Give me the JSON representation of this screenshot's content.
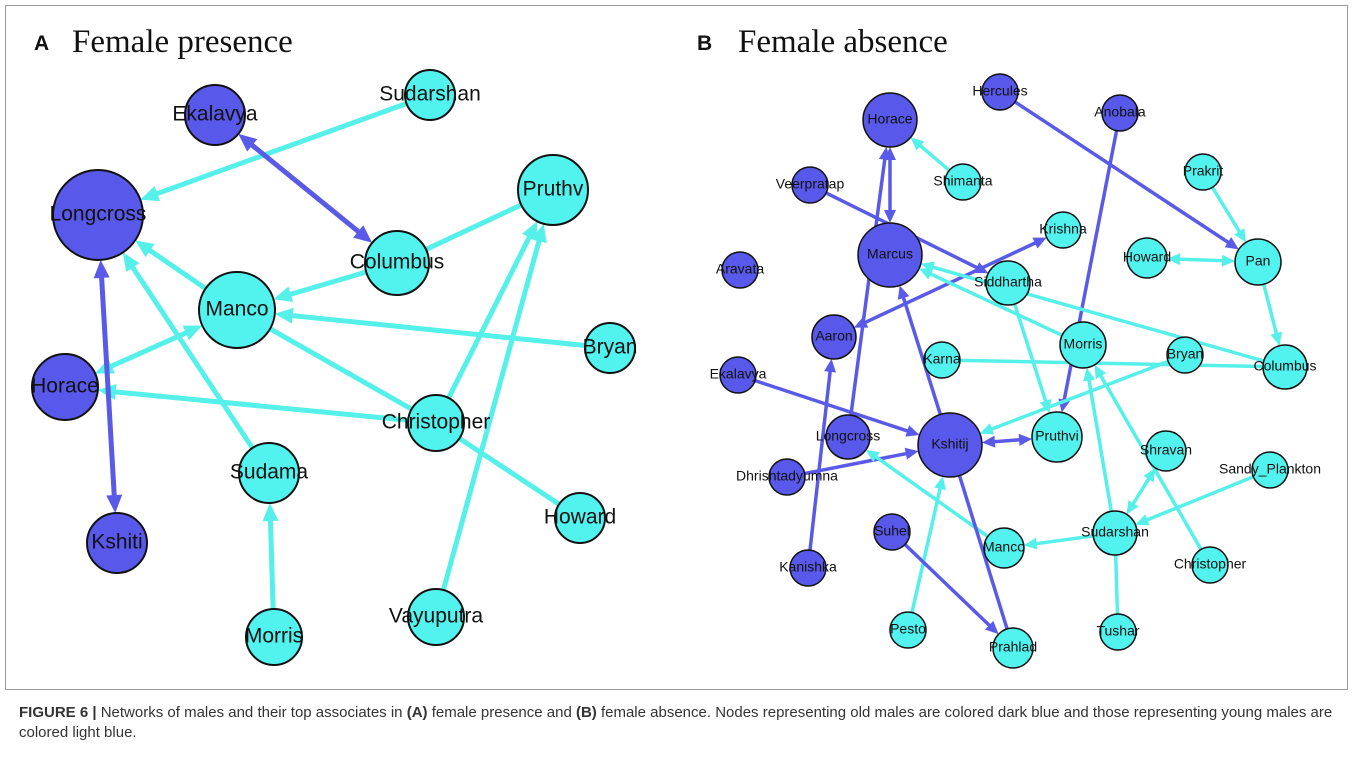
{
  "panels": [
    {
      "letter": "A",
      "title": "Female presence",
      "nodes": [
        {
          "label": "Ekalavya",
          "color": "#5858ea"
        },
        {
          "label": "Sudarshan",
          "color": "#52f3ee"
        },
        {
          "label": "Longcross",
          "color": "#5858ea"
        },
        {
          "label": "Pruthv",
          "color": "#52f3ee"
        },
        {
          "label": "Columbus",
          "color": "#52f3ee"
        },
        {
          "label": "Manco",
          "color": "#52f3ee"
        },
        {
          "label": "Bryan",
          "color": "#52f3ee"
        },
        {
          "label": "Horace",
          "color": "#5858ea"
        },
        {
          "label": "Christopher",
          "color": "#52f3ee"
        },
        {
          "label": "Sudama",
          "color": "#52f3ee"
        },
        {
          "label": "Howard",
          "color": "#52f3ee"
        },
        {
          "label": "Kshiti",
          "color": "#5858ea"
        },
        {
          "label": "Vayuputra",
          "color": "#52f3ee"
        },
        {
          "label": "Morris",
          "color": "#52f3ee"
        }
      ]
    },
    {
      "letter": "B",
      "title": "Female absence",
      "nodes": [
        {
          "label": "Hercules",
          "color": "#5858ea"
        },
        {
          "label": "Anobala",
          "color": "#5858ea"
        },
        {
          "label": "Horace",
          "color": "#5858ea"
        },
        {
          "label": "Prakrit",
          "color": "#52f3ee"
        },
        {
          "label": "Shimanta",
          "color": "#52f3ee"
        },
        {
          "label": "Veerpratap",
          "color": "#5858ea"
        },
        {
          "label": "Krishna",
          "color": "#52f3ee"
        },
        {
          "label": "Marcus",
          "color": "#5858ea"
        },
        {
          "label": "Aravata",
          "color": "#5858ea"
        },
        {
          "label": "Siddhartha",
          "color": "#52f3ee"
        },
        {
          "label": "Howard",
          "color": "#52f3ee"
        },
        {
          "label": "Pan",
          "color": "#52f3ee"
        },
        {
          "label": "Aaron",
          "color": "#5858ea"
        },
        {
          "label": "Karna",
          "color": "#52f3ee"
        },
        {
          "label": "Morris",
          "color": "#52f3ee"
        },
        {
          "label": "Bryan",
          "color": "#52f3ee"
        },
        {
          "label": "Columbus",
          "color": "#52f3ee"
        },
        {
          "label": "Ekalavya",
          "color": "#5858ea"
        },
        {
          "label": "Longcross",
          "color": "#5858ea"
        },
        {
          "label": "Kshitij",
          "color": "#5858ea"
        },
        {
          "label": "Pruthvi",
          "color": "#52f3ee"
        },
        {
          "label": "Shravan",
          "color": "#52f3ee"
        },
        {
          "label": "Sandy_Plankton",
          "color": "#52f3ee"
        },
        {
          "label": "Dhrishtadyumna",
          "color": "#5858ea"
        },
        {
          "label": "Sudarshan",
          "color": "#52f3ee"
        },
        {
          "label": "Suhel",
          "color": "#5858ea"
        },
        {
          "label": "Manco",
          "color": "#52f3ee"
        },
        {
          "label": "Christopher",
          "color": "#52f3ee"
        },
        {
          "label": "Kanishka",
          "color": "#5858ea"
        },
        {
          "label": "Pesto",
          "color": "#52f3ee"
        },
        {
          "label": "Prahlad",
          "color": "#52f3ee"
        },
        {
          "label": "Tushar",
          "color": "#52f3ee"
        }
      ]
    }
  ],
  "caption": [
    "FIGURE 6 |",
    " Networks of males and their top associates in ",
    "(A)",
    " female presence and ",
    "(B)",
    " female absence. Nodes representing old males are colored dark blue and those representing young males are colored light blue."
  ]
}
